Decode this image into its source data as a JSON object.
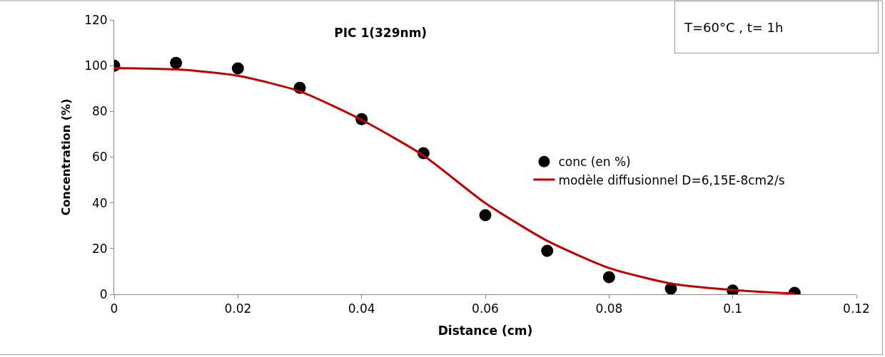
{
  "chart_data": {
    "type": "scatter",
    "title": "PIC 1(329nm)",
    "xlabel": "Distance (cm)",
    "ylabel": "Concentration (%)",
    "annotations": [
      "T=60°C , t= 1h"
    ],
    "series": [
      {
        "name": "conc (en %)",
        "color": "#000000",
        "marker": "circle",
        "x": [
          0,
          0.01,
          0.02,
          0.03,
          0.04,
          0.05,
          0.06,
          0.07,
          0.08,
          0.09,
          0.1,
          0.11
        ],
        "values": [
          100,
          101.2,
          98.8,
          90.3,
          76.6,
          61.7,
          34.6,
          19,
          7.5,
          2.5,
          1.6,
          0.6
        ]
      },
      {
        "name": "modèle diffusionnel D=6,15E-8cm2/s",
        "type": "line",
        "color": "#c00000",
        "marker": "none",
        "line_style": "solid",
        "x": [
          0,
          0.01,
          0.02,
          0.03,
          0.04,
          0.05,
          0.06,
          0.07,
          0.08,
          0.09,
          0.1,
          0.11
        ],
        "values": [
          99,
          98.4,
          95.6,
          88.8,
          76.3,
          60.7,
          39.9,
          23.4,
          11.5,
          4.7,
          1.9,
          0.3
        ]
      }
    ],
    "xlim": [
      0,
      0.12
    ],
    "xticks": [
      0,
      0.02,
      0.04,
      0.06,
      0.08,
      0.1,
      0.12
    ],
    "ylim": [
      0,
      120
    ],
    "yticks": [
      0,
      20,
      40,
      60,
      80,
      100,
      120
    ],
    "legend": "right"
  }
}
